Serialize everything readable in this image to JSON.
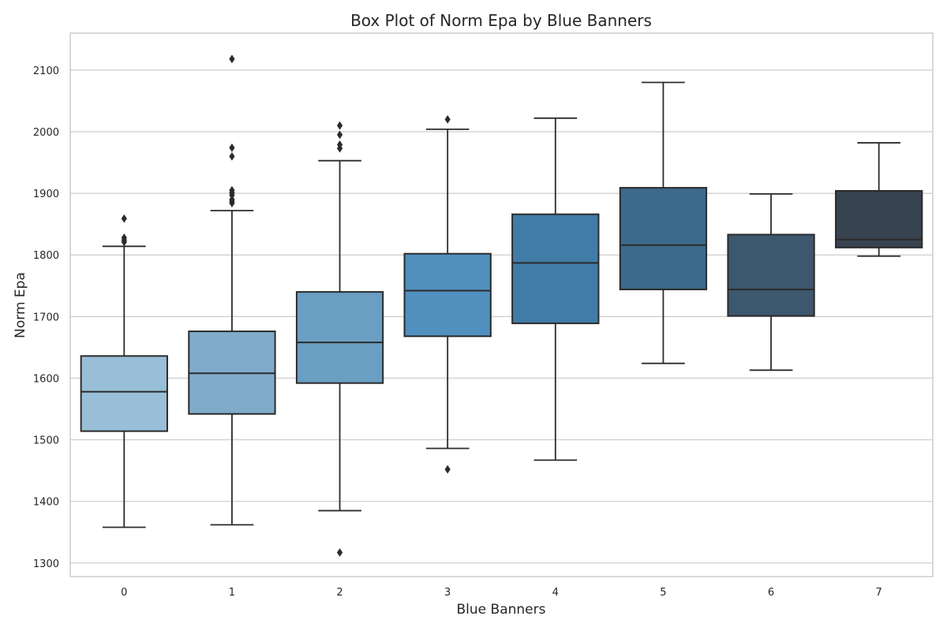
{
  "chart_data": {
    "type": "box",
    "title": "Box Plot of Norm Epa by Blue Banners",
    "xlabel": "Blue Banners",
    "ylabel": "Norm Epa",
    "ylim": [
      1278,
      2160
    ],
    "yticks": [
      1300,
      1400,
      1500,
      1600,
      1700,
      1800,
      1900,
      2000,
      2100
    ],
    "grid": true,
    "categories": [
      "0",
      "1",
      "2",
      "3",
      "4",
      "5",
      "6",
      "7"
    ],
    "boxes": [
      {
        "category": "0",
        "whisker_low": 1358,
        "q1": 1514,
        "median": 1578,
        "q3": 1636,
        "whisker_high": 1814,
        "outliers": [
          1821,
          1824,
          1828,
          1859
        ],
        "color": "#98bfd7"
      },
      {
        "category": "1",
        "whisker_low": 1362,
        "q1": 1542,
        "median": 1608,
        "q3": 1676,
        "whisker_high": 1872,
        "outliers": [
          1884,
          1887,
          1890,
          1897,
          1901,
          1905,
          1960,
          1974,
          2118
        ],
        "color": "#81abcb"
      },
      {
        "category": "2",
        "whisker_low": 1385,
        "q1": 1592,
        "median": 1658,
        "q3": 1740,
        "whisker_high": 1953,
        "outliers": [
          1317,
          1973,
          1979,
          1995,
          2010
        ],
        "color": "#6a9ec2"
      },
      {
        "category": "3",
        "whisker_low": 1486,
        "q1": 1668,
        "median": 1742,
        "q3": 1802,
        "whisker_high": 2004,
        "outliers": [
          1452,
          2020
        ],
        "color": "#508fbe"
      },
      {
        "category": "4",
        "whisker_low": 1467,
        "q1": 1689,
        "median": 1787,
        "q3": 1866,
        "whisker_high": 2022,
        "outliers": [],
        "color": "#407ca6"
      },
      {
        "category": "5",
        "whisker_low": 1624,
        "q1": 1744,
        "median": 1816,
        "q3": 1909,
        "whisker_high": 2080,
        "outliers": [],
        "color": "#3c6a8c"
      },
      {
        "category": "6",
        "whisker_low": 1613,
        "q1": 1701,
        "median": 1744,
        "q3": 1833,
        "whisker_high": 1899,
        "outliers": [],
        "color": "#3d576e"
      },
      {
        "category": "7",
        "whisker_low": 1798,
        "q1": 1812,
        "median": 1825,
        "q3": 1904,
        "whisker_high": 1982,
        "outliers": [],
        "color": "#37434f"
      }
    ]
  }
}
